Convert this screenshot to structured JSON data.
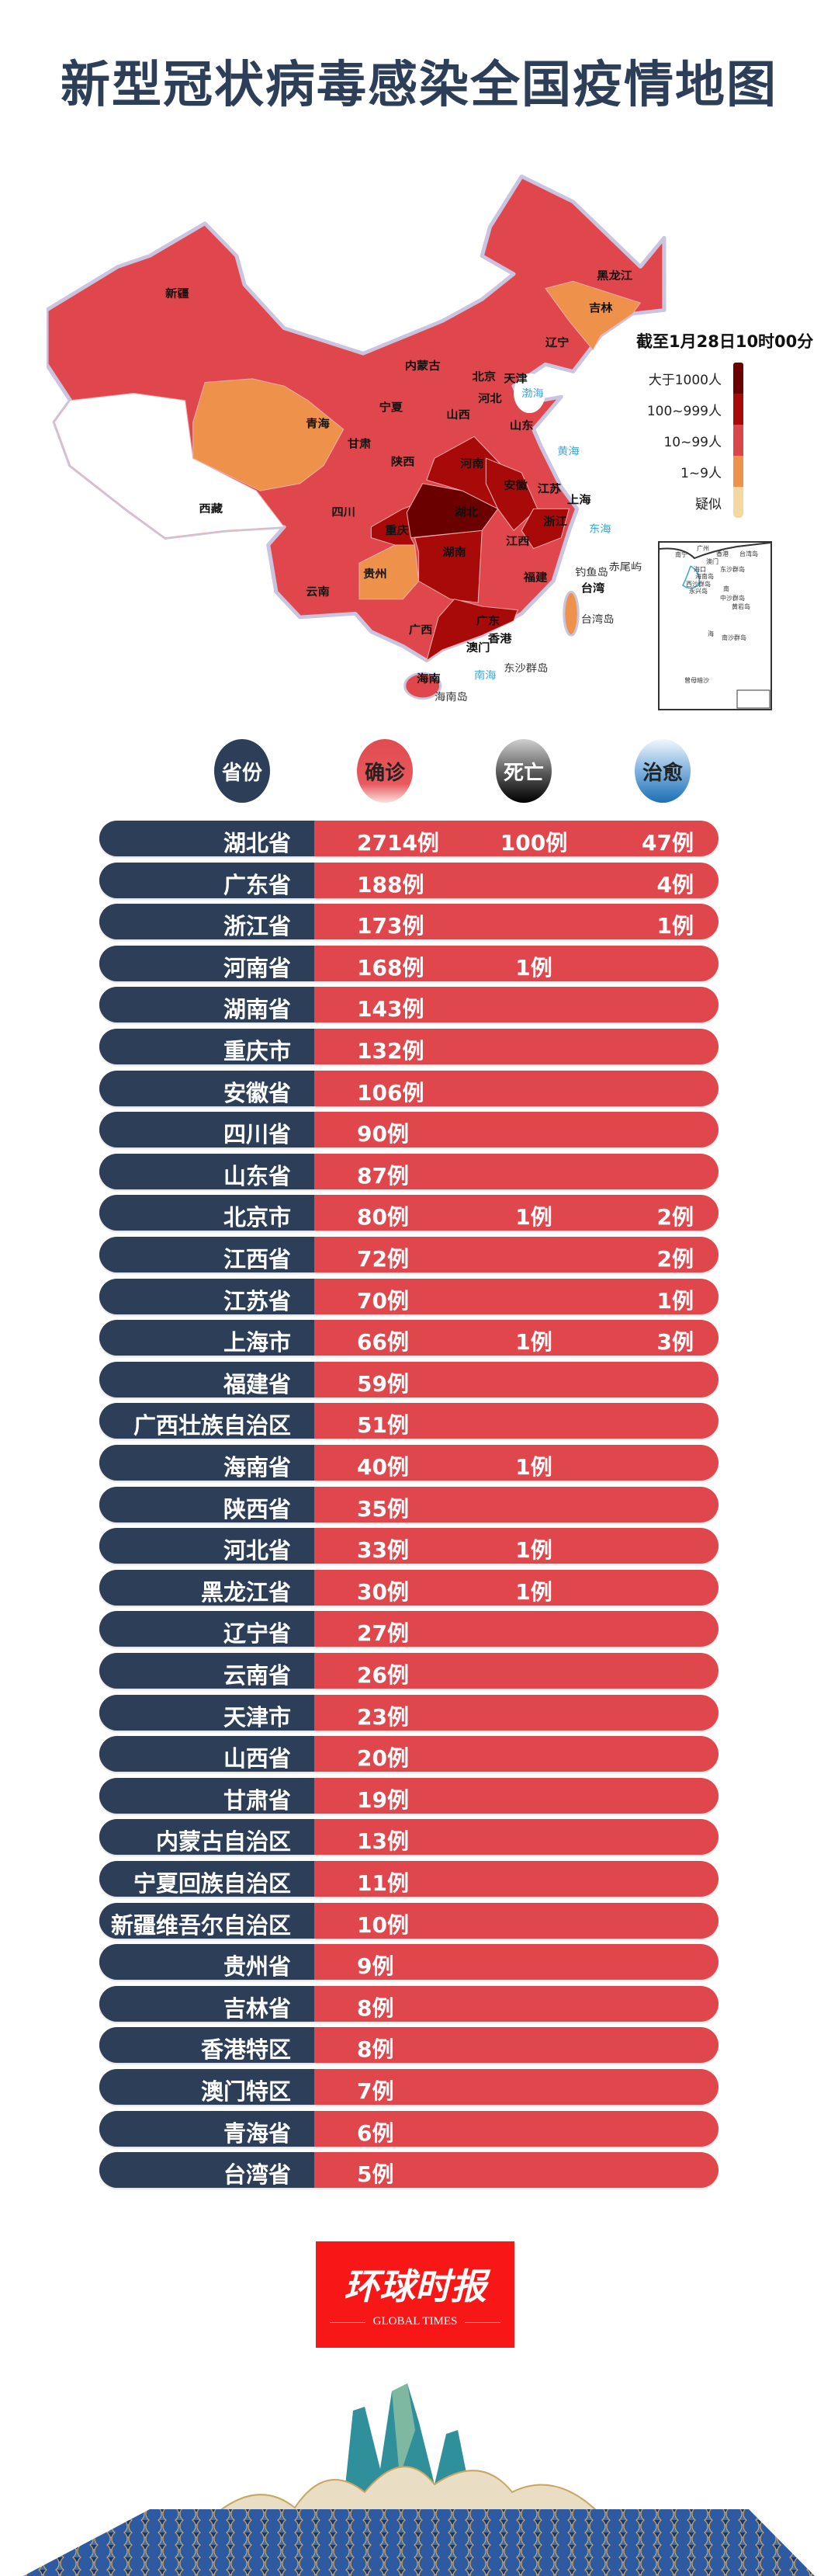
{
  "title": "新型冠状病毒感染全国疫情地图",
  "map": {
    "labels": [
      "新疆",
      "西藏",
      "青海",
      "甘肃",
      "宁夏",
      "内蒙古",
      "北京",
      "天津",
      "河北",
      "山西",
      "山东",
      "陕西",
      "河南",
      "四川",
      "湖北",
      "重庆",
      "安徽",
      "江苏",
      "上海",
      "浙江",
      "江西",
      "湖南",
      "贵州",
      "云南",
      "福建",
      "广西",
      "广东",
      "香港",
      "澳门",
      "海南",
      "台湾",
      "黑龙江",
      "吉林",
      "辽宁"
    ],
    "sea_labels": [
      "渤海",
      "黄海",
      "东海",
      "南海",
      "钓鱼岛",
      "赤尾屿",
      "台湾岛",
      "海南岛",
      "东沙群岛"
    ],
    "colors": {
      "over_1000": "#6b0000",
      "100_999": "#a80a0a",
      "10_99": "#e0474c",
      "1_9": "#ee914a",
      "suspected": "#f5d7a0",
      "none": "#ffffff"
    }
  },
  "legend": {
    "title": "截至1月28日10时00分",
    "items": [
      {
        "label": "大于1000人",
        "color": "#6b0000"
      },
      {
        "label": "100~999人",
        "color": "#a80a0a"
      },
      {
        "label": "10~99人",
        "color": "#d9474b"
      },
      {
        "label": "1~9人",
        "color": "#ee914a"
      },
      {
        "label": "疑似",
        "color": "#f5d7a0"
      }
    ]
  },
  "inset": {
    "labels": [
      "广州",
      "南宁",
      "香港",
      "澳门",
      "台湾岛",
      "海口",
      "海南岛",
      "东沙群岛",
      "西沙群岛",
      "永兴岛",
      "南",
      "中沙群岛",
      "黄岩岛",
      "海",
      "南沙群岛",
      "曾母暗沙",
      "南海诸岛"
    ]
  },
  "table": {
    "headers": {
      "province": "省份",
      "confirmed": "确诊",
      "deaths": "死亡",
      "cured": "治愈"
    },
    "rows": [
      {
        "province": "湖北省",
        "confirmed": "2714例",
        "deaths": "100例",
        "cured": "47例"
      },
      {
        "province": "广东省",
        "confirmed": "188例",
        "deaths": "",
        "cured": "4例"
      },
      {
        "province": "浙江省",
        "confirmed": "173例",
        "deaths": "",
        "cured": "1例"
      },
      {
        "province": "河南省",
        "confirmed": "168例",
        "deaths": "1例",
        "cured": ""
      },
      {
        "province": "湖南省",
        "confirmed": "143例",
        "deaths": "",
        "cured": ""
      },
      {
        "province": "重庆市",
        "confirmed": "132例",
        "deaths": "",
        "cured": ""
      },
      {
        "province": "安徽省",
        "confirmed": "106例",
        "deaths": "",
        "cured": ""
      },
      {
        "province": "四川省",
        "confirmed": "90例",
        "deaths": "",
        "cured": ""
      },
      {
        "province": "山东省",
        "confirmed": "87例",
        "deaths": "",
        "cured": ""
      },
      {
        "province": "北京市",
        "confirmed": "80例",
        "deaths": "1例",
        "cured": "2例"
      },
      {
        "province": "江西省",
        "confirmed": "72例",
        "deaths": "",
        "cured": "2例"
      },
      {
        "province": "江苏省",
        "confirmed": "70例",
        "deaths": "",
        "cured": "1例"
      },
      {
        "province": "上海市",
        "confirmed": "66例",
        "deaths": "1例",
        "cured": "3例"
      },
      {
        "province": "福建省",
        "confirmed": "59例",
        "deaths": "",
        "cured": ""
      },
      {
        "province": "广西壮族自治区",
        "confirmed": "51例",
        "deaths": "",
        "cured": ""
      },
      {
        "province": "海南省",
        "confirmed": "40例",
        "deaths": "1例",
        "cured": ""
      },
      {
        "province": "陕西省",
        "confirmed": "35例",
        "deaths": "",
        "cured": ""
      },
      {
        "province": "河北省",
        "confirmed": "33例",
        "deaths": "1例",
        "cured": ""
      },
      {
        "province": "黑龙江省",
        "confirmed": "30例",
        "deaths": "1例",
        "cured": ""
      },
      {
        "province": "辽宁省",
        "confirmed": "27例",
        "deaths": "",
        "cured": ""
      },
      {
        "province": "云南省",
        "confirmed": "26例",
        "deaths": "",
        "cured": ""
      },
      {
        "province": "天津市",
        "confirmed": "23例",
        "deaths": "",
        "cured": ""
      },
      {
        "province": "山西省",
        "confirmed": "20例",
        "deaths": "",
        "cured": ""
      },
      {
        "province": "甘肃省",
        "confirmed": "19例",
        "deaths": "",
        "cured": ""
      },
      {
        "province": "内蒙古自治区",
        "confirmed": "13例",
        "deaths": "",
        "cured": ""
      },
      {
        "province": "宁夏回族自治区",
        "confirmed": "11例",
        "deaths": "",
        "cured": ""
      },
      {
        "province": "新疆维吾尔自治区",
        "confirmed": "10例",
        "deaths": "",
        "cured": ""
      },
      {
        "province": "贵州省",
        "confirmed": "9例",
        "deaths": "",
        "cured": ""
      },
      {
        "province": "吉林省",
        "confirmed": "8例",
        "deaths": "",
        "cured": ""
      },
      {
        "province": "香港特区",
        "confirmed": "8例",
        "deaths": "",
        "cured": ""
      },
      {
        "province": "澳门特区",
        "confirmed": "7例",
        "deaths": "",
        "cured": ""
      },
      {
        "province": "青海省",
        "confirmed": "6例",
        "deaths": "",
        "cured": ""
      },
      {
        "province": "台湾省",
        "confirmed": "5例",
        "deaths": "",
        "cured": ""
      }
    ]
  },
  "logo": {
    "chinese": "环球时报",
    "english": "GLOBAL TIMES"
  }
}
